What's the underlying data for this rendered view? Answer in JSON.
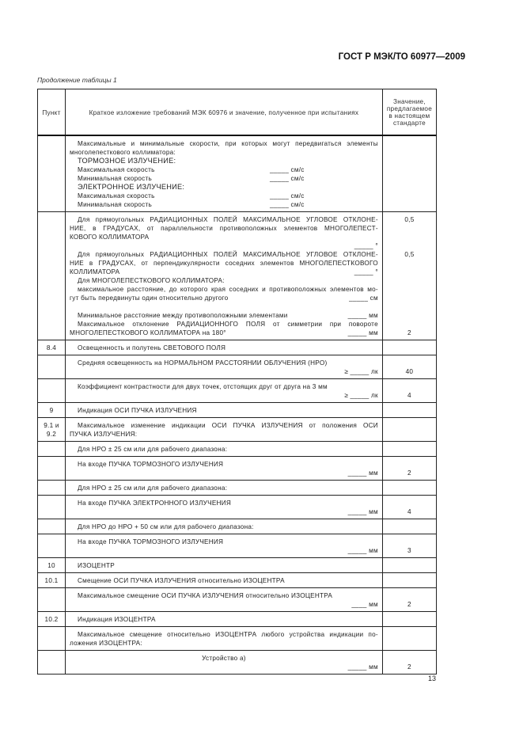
{
  "header": {
    "doc_code": "ГОСТ Р МЭК/ТО 60977—2009",
    "caption": "Продолжение таблицы 1"
  },
  "table": {
    "headers": [
      "Пункт",
      "Краткое изложение требований МЭК 60976 и значение, полученное при испытаниях",
      "Значение, предлагаемое в настоящем стандарте"
    ],
    "rows": [
      {
        "num": [],
        "lines": [
          {
            "t": "Максимальные и минимальные скорости, при которых могут передвигаться элементы",
            "j": 1,
            "ind": 1
          },
          {
            "t": "многолепесткового коллиматора:"
          },
          {
            "t": "ТОРМОЗНОЕ ИЗЛУЧЕНИЕ:",
            "ind": 1,
            "big": 1
          },
          {
            "t": "Максимальная скорость",
            "u": "_____ см/с",
            "mid": 1,
            "ind": 1
          },
          {
            "t": "Минимальная скорость",
            "u": "_____ см/с",
            "mid": 1,
            "ind": 1
          },
          {
            "t": "ЭЛЕКТРОННОЕ ИЗЛУЧЕНИЕ:",
            "ind": 1,
            "big": 1
          },
          {
            "t": "Максимальная скорость",
            "u": "_____ см/с",
            "mid": 1,
            "ind": 1
          },
          {
            "t": "Минимальная скорость",
            "u": "_____ см/с",
            "mid": 1,
            "ind": 1
          }
        ]
      },
      {
        "num": [],
        "lines": [
          {
            "t": "Для прямоугольных РАДИАЦИОННЫХ ПОЛЕЙ МАКСИМАЛЬНОЕ УГЛОВОЕ ОТКЛОНЕ-",
            "j": 1,
            "ind": 1,
            "v": "0,5"
          },
          {
            "t": "НИЕ, в ГРАДУСАХ, от параллельности противоположных элементов МНОГОЛЕПЕСТ-",
            "j": 1
          },
          {
            "t": "КОВОГО КОЛЛИМАТОРА"
          },
          {
            "t": "",
            "u": "_____ °"
          },
          {
            "t": "Для прямоугольных РАДИАЦИОННЫХ ПОЛЕЙ МАКСИМАЛЬНОЕ УГЛОВОЕ ОТКЛОНЕ-",
            "j": 1,
            "ind": 1,
            "v": "0,5"
          },
          {
            "t": "НИЕ в ГРАДУСАХ, от перпендикулярности соседних элементов МНОГОЛЕПЕСТКОВОГО",
            "j": 1
          },
          {
            "t": "КОЛЛИМАТОРА",
            "u": "_____ °"
          },
          {
            "t": "Для МНОГОЛЕПЕСТКОВОГО КОЛЛИМАТОРА:",
            "ind": 1
          },
          {
            "t": "максимальное расстояние, до которого края соседних и противоположных элементов мо-",
            "j": 1,
            "ind": 1
          },
          {
            "t": "гут быть передвинуты один относительно другого",
            "u": "_____ см"
          },
          {
            "t": ""
          },
          {
            "t": "Минимальное расстояние между противоположными элементами",
            "u": "_____ мм",
            "ind": 1
          },
          {
            "t": "Максимальное отклонение РАДИАЦИОННОГО ПОЛЯ от симметрии при повороте",
            "j": 1,
            "ind": 1
          },
          {
            "t": "МНОГОЛЕПЕСТКОВОГО КОЛЛИМАТОРА на 180°",
            "u": "_____ мм",
            "v": "2"
          }
        ]
      },
      {
        "num": [
          "8.4"
        ],
        "lines": [
          {
            "t": "Освещенность и полутень СВЕТОВОГО ПОЛЯ",
            "ind": 1
          }
        ]
      },
      {
        "num": [],
        "lines": [
          {
            "t": "Средняя освещенность на НОРМАЛЬНОМ РАССТОЯНИИ ОБЛУЧЕНИЯ (НРО)",
            "ind": 1
          },
          {
            "t": "",
            "u": "≥ _____ лк",
            "v": "40"
          }
        ]
      },
      {
        "num": [],
        "lines": [
          {
            "t": "Коэффициент контрастности для двух точек, отстоящих друг от друга на 3 мм",
            "ind": 1
          },
          {
            "t": "",
            "u": "≥ _____ лк",
            "v": "4"
          }
        ]
      },
      {
        "num": [
          "9"
        ],
        "lines": [
          {
            "t": "Индикация ОСИ ПУЧКА ИЗЛУЧЕНИЯ",
            "ind": 1
          }
        ]
      },
      {
        "num": [
          "9.1 и",
          "9.2"
        ],
        "lines": [
          {
            "t": "Максимальное изменение индикации ОСИ ПУЧКА ИЗЛУЧЕНИЯ от положения ОСИ",
            "j": 1,
            "ind": 1
          },
          {
            "t": "ПУЧКА ИЗЛУЧЕНИЯ:"
          }
        ]
      },
      {
        "num": [],
        "lines": [
          {
            "t": "Для НРО ± 25 см или для рабочего диапазона:",
            "ind": 1
          }
        ]
      },
      {
        "num": [],
        "lines": [
          {
            "t": "На входе ПУЧКА ТОРМОЗНОГО ИЗЛУЧЕНИЯ",
            "ind": 1
          },
          {
            "t": "",
            "u": "_____ мм",
            "v": "2"
          }
        ]
      },
      {
        "num": [],
        "lines": [
          {
            "t": "Для НРО ± 25 см или для рабочего диапазона:",
            "ind": 1
          }
        ]
      },
      {
        "num": [],
        "lines": [
          {
            "t": "На входе ПУЧКА ЭЛЕКТРОННОГО ИЗЛУЧЕНИЯ",
            "ind": 1
          },
          {
            "t": "",
            "u": "_____ мм",
            "v": "4"
          }
        ]
      },
      {
        "num": [],
        "lines": [
          {
            "t": "Для НРО до НРО + 50 см или для рабочего диапазона:",
            "ind": 1
          }
        ]
      },
      {
        "num": [],
        "lines": [
          {
            "t": "На входе ПУЧКА ТОРМОЗНОГО ИЗЛУЧЕНИЯ",
            "ind": 1
          },
          {
            "t": "",
            "u": "_____ мм",
            "v": "3"
          }
        ]
      },
      {
        "num": [
          "10"
        ],
        "lines": [
          {
            "t": "ИЗОЦЕНТР",
            "ind": 1
          }
        ]
      },
      {
        "num": [
          "10.1"
        ],
        "lines": [
          {
            "t": "Смещение ОСИ ПУЧКА ИЗЛУЧЕНИЯ относительно ИЗОЦЕНТРА",
            "ind": 1
          }
        ]
      },
      {
        "num": [],
        "lines": [
          {
            "t": "Максимальное смещение ОСИ ПУЧКА ИЗЛУЧЕНИЯ относительно ИЗОЦЕНТРА",
            "ind": 1
          },
          {
            "t": "",
            "u": "____ мм",
            "v": "2"
          }
        ]
      },
      {
        "num": [
          "10.2"
        ],
        "lines": [
          {
            "t": "Индикация ИЗОЦЕНТРА",
            "ind": 1
          }
        ]
      },
      {
        "num": [],
        "lines": [
          {
            "t": "Максимальное смещение относительно ИЗОЦЕНТРА любого устройства индикации по-",
            "j": 1,
            "ind": 1
          },
          {
            "t": "ложения ИЗОЦЕНТРА:"
          }
        ]
      },
      {
        "num": [],
        "lines": [
          {
            "t": "Устройство а)",
            "center": 1
          },
          {
            "t": "",
            "u": "_____ мм",
            "v": "2"
          }
        ]
      }
    ]
  },
  "footer": {
    "page_number": "13"
  }
}
